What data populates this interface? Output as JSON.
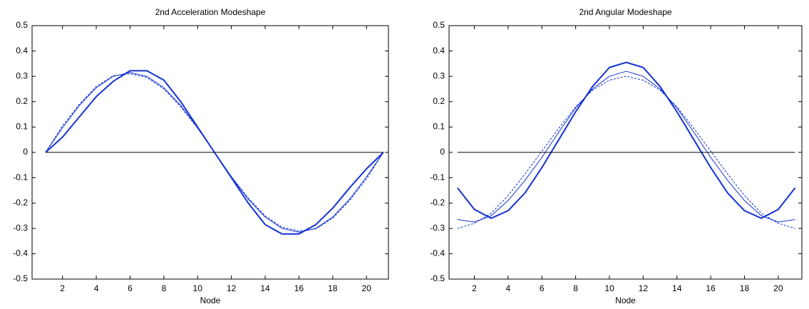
{
  "chart_data": [
    {
      "type": "line",
      "title": "2nd Acceleration Modeshape",
      "xlabel": "Node",
      "x": [
        1,
        2,
        3,
        4,
        5,
        6,
        7,
        8,
        9,
        10,
        11,
        12,
        13,
        14,
        15,
        16,
        17,
        18,
        19,
        20,
        21
      ],
      "xlim": [
        0.2,
        21.3
      ],
      "xticks": [
        2,
        4,
        6,
        8,
        10,
        12,
        14,
        16,
        18,
        20
      ],
      "ylim": [
        -0.5,
        0.5
      ],
      "yticks": [
        -0.5,
        -0.4,
        -0.3,
        -0.2,
        -0.1,
        0,
        0.1,
        0.2,
        0.3,
        0.4,
        0.5
      ],
      "grid": false,
      "series": [
        {
          "color": "#1432d2",
          "line_width": 2,
          "dashed": false,
          "values": [
            0,
            0.06,
            0.14,
            0.22,
            0.28,
            0.322,
            0.322,
            0.285,
            0.2,
            0.1,
            0,
            -0.1,
            -0.2,
            -0.285,
            -0.322,
            -0.322,
            -0.285,
            -0.22,
            -0.14,
            -0.065,
            0
          ]
        },
        {
          "color": "#1432d2",
          "line_width": 1,
          "dashed": false,
          "values": [
            0,
            0.097,
            0.185,
            0.255,
            0.3,
            0.315,
            0.3,
            0.255,
            0.185,
            0.097,
            0,
            -0.097,
            -0.185,
            -0.255,
            -0.3,
            -0.315,
            -0.3,
            -0.255,
            -0.185,
            -0.097,
            0
          ]
        },
        {
          "color": "#1432d2",
          "line_width": 1,
          "dashed": true,
          "values": [
            0,
            0.105,
            0.19,
            0.26,
            0.302,
            0.31,
            0.295,
            0.25,
            0.18,
            0.095,
            0,
            -0.095,
            -0.18,
            -0.25,
            -0.295,
            -0.31,
            -0.302,
            -0.26,
            -0.19,
            -0.105,
            0
          ]
        },
        {
          "color": "#000000",
          "line_width": 1,
          "dashed": false,
          "values": [
            0,
            0,
            0,
            0,
            0,
            0,
            0,
            0,
            0,
            0,
            0,
            0,
            0,
            0,
            0,
            0,
            0,
            0,
            0,
            0,
            0
          ]
        }
      ]
    },
    {
      "type": "line",
      "title": "2nd Angular Modeshape",
      "xlabel": "Node",
      "x": [
        1,
        2,
        3,
        4,
        5,
        6,
        7,
        8,
        9,
        10,
        11,
        12,
        13,
        14,
        15,
        16,
        17,
        18,
        19,
        20,
        21
      ],
      "xlim": [
        0.5,
        21.4
      ],
      "xticks": [
        2,
        4,
        6,
        8,
        10,
        12,
        14,
        16,
        18,
        20
      ],
      "ylim": [
        -0.5,
        0.5
      ],
      "yticks": [
        -0.5,
        -0.4,
        -0.3,
        -0.2,
        -0.1,
        0,
        0.1,
        0.2,
        0.3,
        0.4,
        0.5
      ],
      "grid": false,
      "series": [
        {
          "color": "#1432d2",
          "line_width": 2,
          "dashed": false,
          "values": [
            -0.14,
            -0.225,
            -0.26,
            -0.23,
            -0.16,
            -0.06,
            0.05,
            0.16,
            0.26,
            0.335,
            0.355,
            0.335,
            0.26,
            0.16,
            0.05,
            -0.06,
            -0.16,
            -0.23,
            -0.26,
            -0.225,
            -0.14
          ]
        },
        {
          "color": "#1432d2",
          "line_width": 1,
          "dashed": false,
          "values": [
            -0.265,
            -0.275,
            -0.25,
            -0.19,
            -0.11,
            -0.02,
            0.08,
            0.175,
            0.25,
            0.3,
            0.32,
            0.3,
            0.25,
            0.175,
            0.08,
            -0.02,
            -0.11,
            -0.19,
            -0.25,
            -0.275,
            -0.265
          ]
        },
        {
          "color": "#1432d2",
          "line_width": 1,
          "dashed": true,
          "values": [
            -0.3,
            -0.28,
            -0.24,
            -0.17,
            -0.085,
            0.005,
            0.095,
            0.18,
            0.245,
            0.285,
            0.3,
            0.285,
            0.245,
            0.18,
            0.095,
            0.005,
            -0.085,
            -0.17,
            -0.24,
            -0.28,
            -0.3
          ]
        },
        {
          "color": "#000000",
          "line_width": 1,
          "dashed": false,
          "values": [
            0,
            0,
            0,
            0,
            0,
            0,
            0,
            0,
            0,
            0,
            0,
            0,
            0,
            0,
            0,
            0,
            0,
            0,
            0,
            0,
            0
          ]
        }
      ]
    }
  ]
}
